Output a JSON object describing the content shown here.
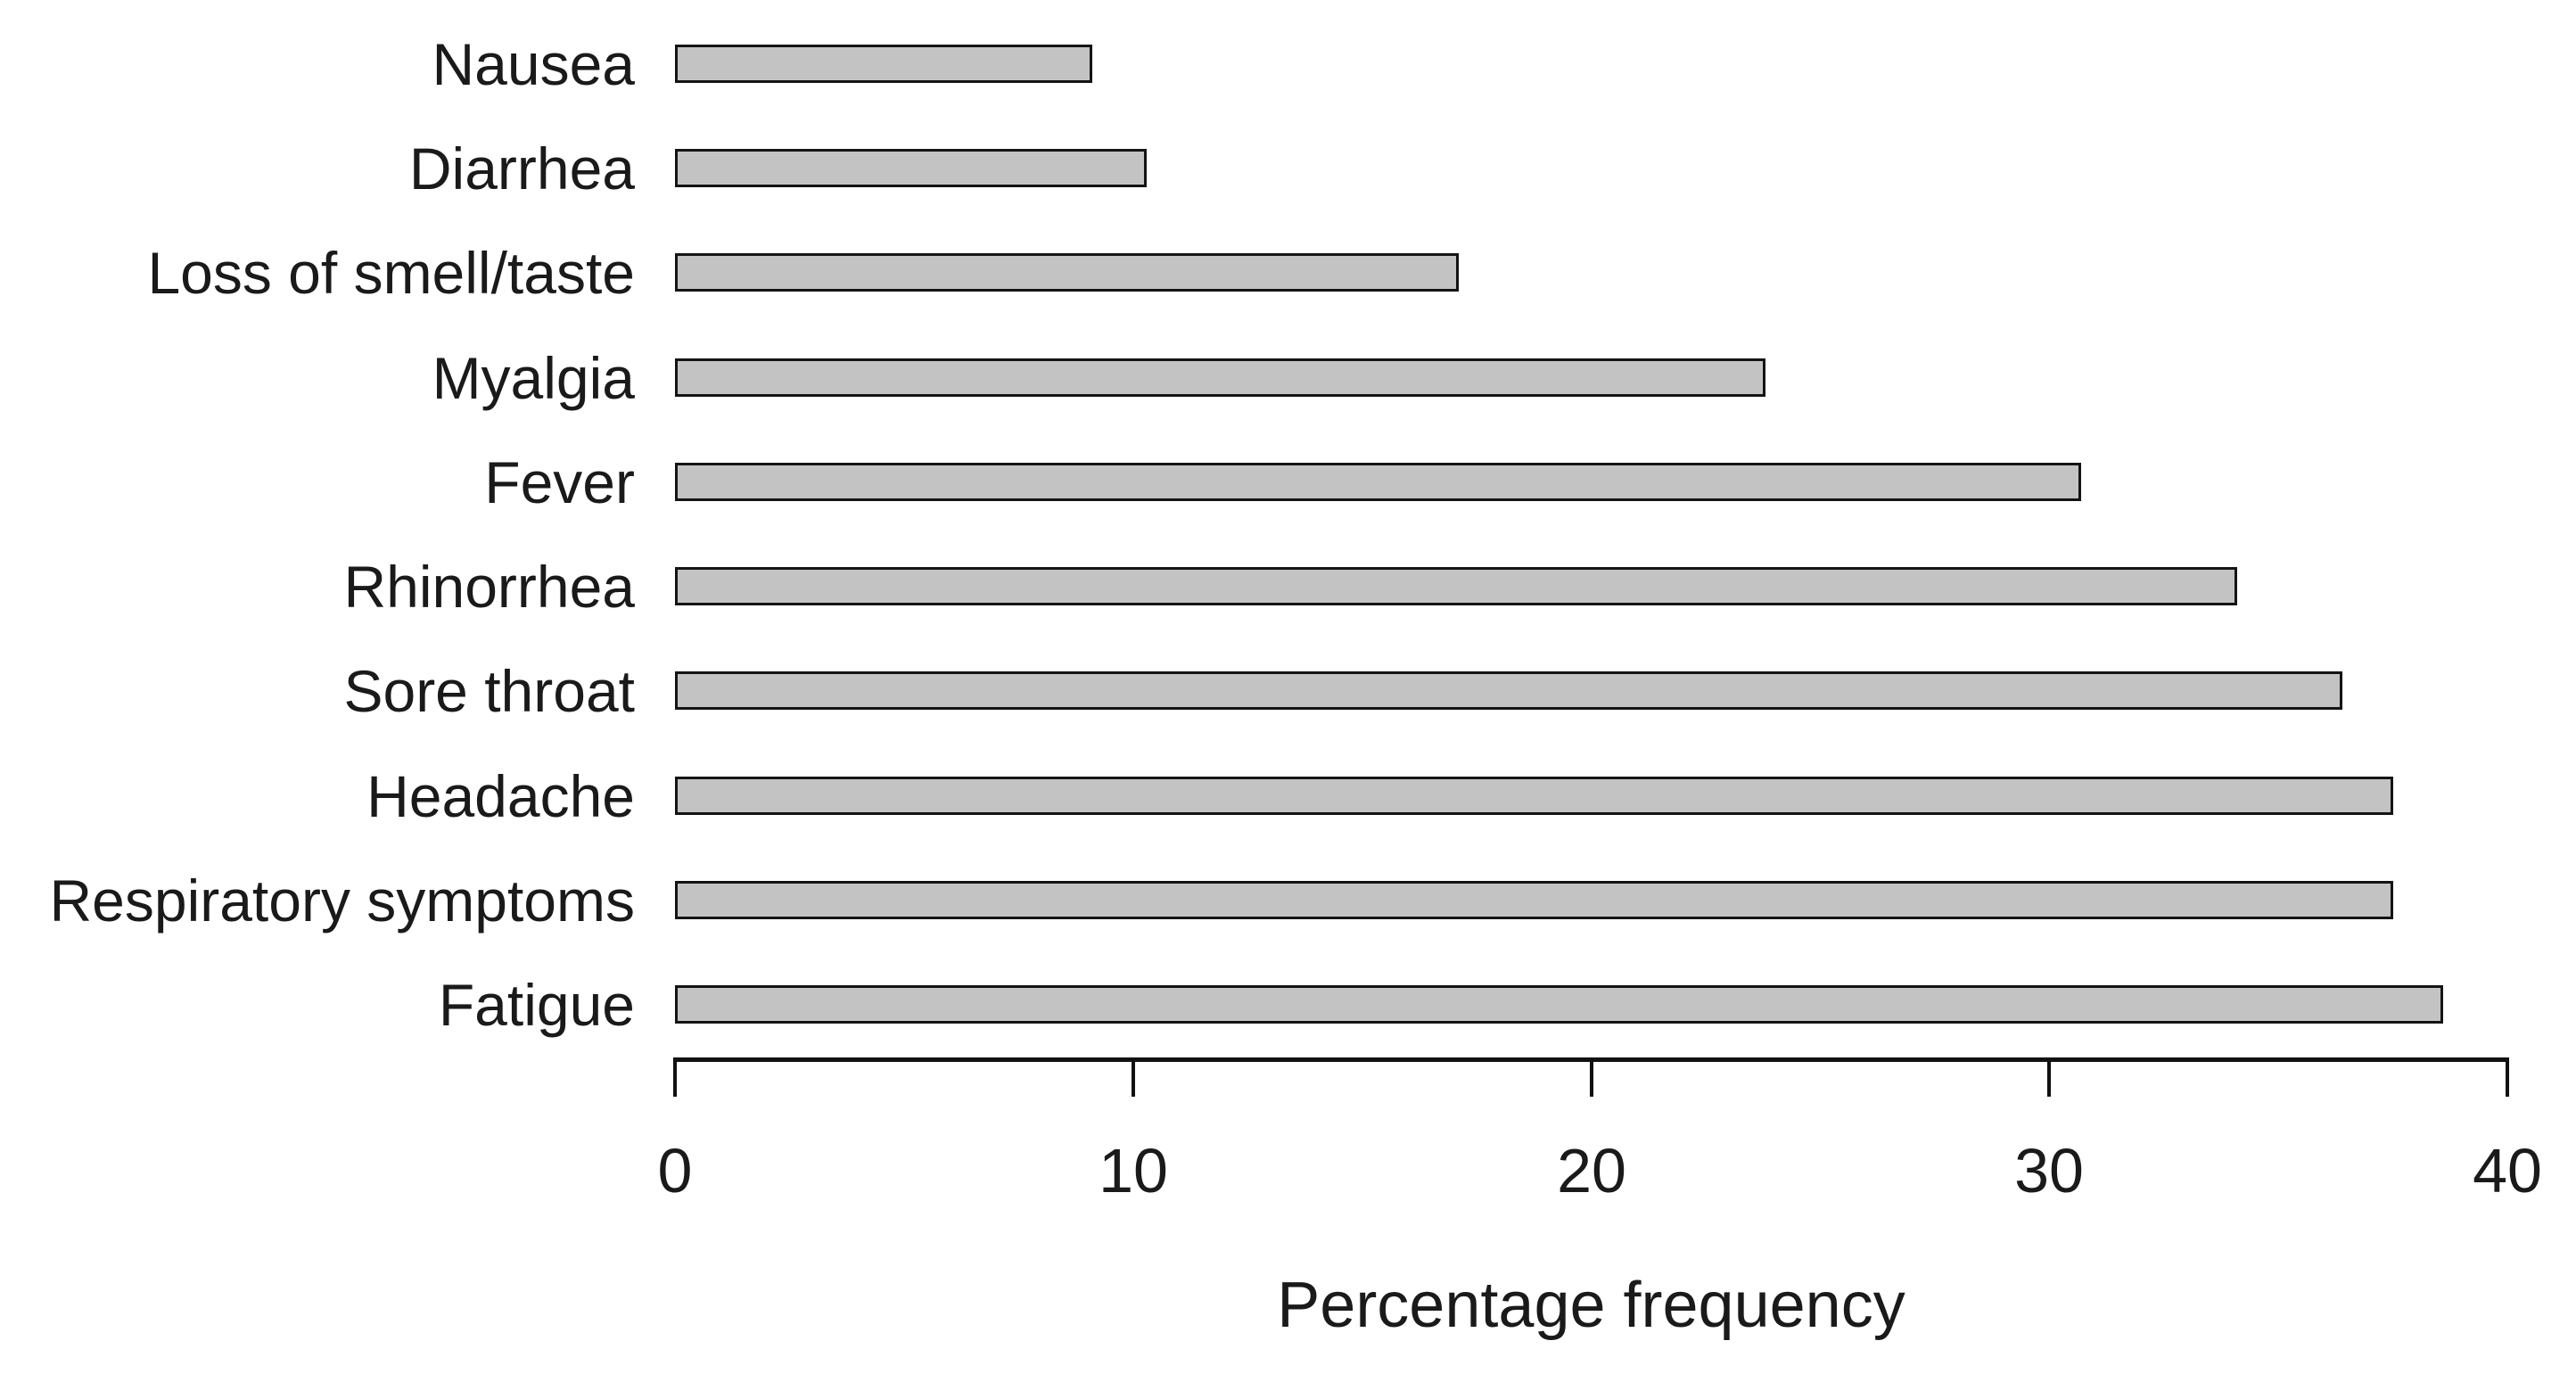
{
  "chart_data": {
    "type": "bar",
    "orientation": "horizontal",
    "title": "",
    "xlabel": "Percentage frequency",
    "ylabel": "",
    "categories": [
      "Nausea",
      "Diarrhea",
      "Loss of smell/taste",
      "Myalgia",
      "Fever",
      "Rhinorrhea",
      "Sore throat",
      "Headache",
      "Respiratory symptoms",
      "Fatigue"
    ],
    "values": [
      9.1,
      10.3,
      17.1,
      23.8,
      30.7,
      34.1,
      36.4,
      37.5,
      37.5,
      38.6
    ],
    "xlim": [
      0,
      40
    ],
    "xticks": [
      0,
      10,
      20,
      30,
      40
    ],
    "grid": false,
    "legend": null,
    "colors": {
      "bar_fill": "#c3c3c3",
      "bar_border": "#141414",
      "axis": "#111111",
      "text": "#1a1a1a",
      "background": "#ffffff"
    }
  }
}
